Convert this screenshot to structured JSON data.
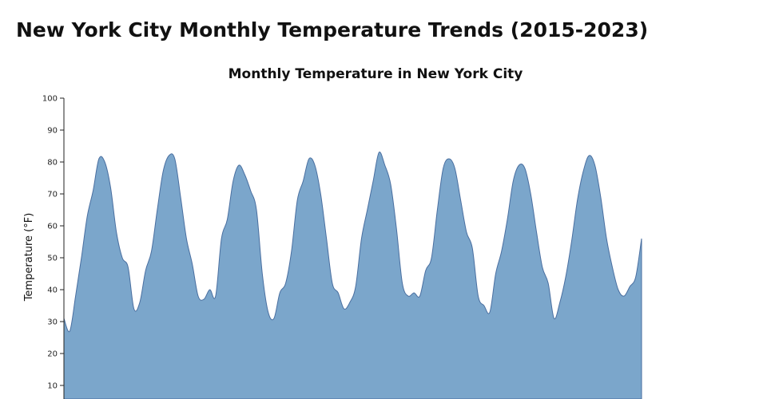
{
  "page": {
    "title": "New York City Monthly Temperature Trends (2015-2023)"
  },
  "chart_data": {
    "type": "area",
    "title": "Monthly Temperature in New York City",
    "xlabel": "",
    "ylabel": "Temperature (°F)",
    "ylim": [
      0,
      100
    ],
    "yticks": [
      10,
      20,
      30,
      40,
      50,
      60,
      70,
      80,
      90,
      100
    ],
    "grid": false,
    "fill_color": "#7ba6cb",
    "stroke_color": "#4a6fa0",
    "series": [
      {
        "values": [
          31,
          27,
          38,
          50,
          63,
          71,
          81,
          80,
          72,
          58,
          50,
          47,
          34,
          36,
          46,
          52,
          65,
          77,
          82,
          81,
          69,
          56,
          48,
          38,
          37,
          40,
          38,
          56,
          62,
          74,
          79,
          76,
          71,
          65,
          45,
          33,
          31,
          39,
          42,
          52,
          68,
          74,
          81,
          79,
          70,
          56,
          42,
          39,
          34,
          36,
          41,
          56,
          65,
          74,
          83,
          79,
          73,
          59,
          42,
          38,
          39,
          38,
          46,
          50,
          65,
          78,
          81,
          78,
          68,
          58,
          53,
          38,
          35,
          33,
          45,
          52,
          62,
          74,
          79,
          78,
          70,
          58,
          47,
          42,
          31,
          36,
          44,
          55,
          68,
          77,
          82,
          79,
          69,
          56,
          47,
          40,
          38,
          41,
          44,
          56
        ]
      }
    ]
  }
}
